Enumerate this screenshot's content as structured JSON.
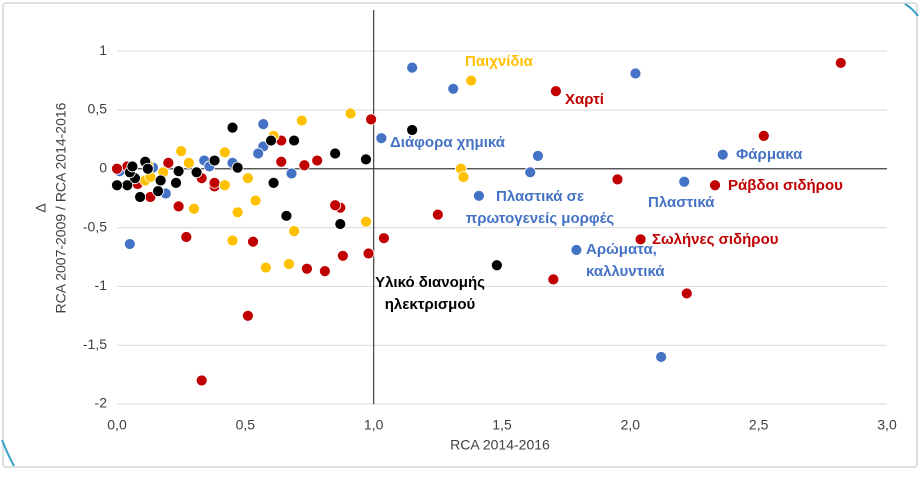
{
  "chart_data": {
    "type": "scatter",
    "x_label": "RCA 2014-2016",
    "y_label": [
      "Δ",
      "RCA 2007-2009 / RCA 2014-2016"
    ],
    "xlim": [
      0,
      3
    ],
    "ylim": [
      -2,
      1.35
    ],
    "xticks": [
      {
        "value": 0,
        "label": "0,0"
      },
      {
        "value": 0.5,
        "label": "0,5"
      },
      {
        "value": 1,
        "label": "1,0"
      },
      {
        "value": 1.5,
        "label": "1,5"
      },
      {
        "value": 2,
        "label": "2,0"
      },
      {
        "value": 2.5,
        "label": "2,5"
      },
      {
        "value": 3,
        "label": "3,0"
      }
    ],
    "yticks": [
      {
        "value": -2,
        "label": "-2"
      },
      {
        "value": -1.5,
        "label": "-1,5"
      },
      -1,
      {
        "value": -0.5,
        "label": "-0,5"
      },
      0,
      {
        "value": 0.5,
        "label": "0,5"
      },
      1
    ],
    "grid": true,
    "axis_cross": {
      "x": 1,
      "y": 0
    },
    "series": [
      {
        "color": "#4472c4",
        "x": [
          1.15,
          1.31,
          2.02,
          1.03,
          1.64,
          2.36,
          2.21,
          1.41,
          1.61,
          1.79,
          2.12,
          0.05,
          0.57,
          0.57,
          0.55,
          0.68,
          0.45,
          0.34,
          0.36,
          0.19,
          0.01,
          0.14
        ],
        "values": [
          0.86,
          0.68,
          0.81,
          0.26,
          0.11,
          0.12,
          -0.11,
          -0.23,
          -0.03,
          -0.69,
          -1.6,
          -0.64,
          0.38,
          0.19,
          0.13,
          -0.04,
          0.05,
          0.07,
          0.02,
          -0.21,
          -0.02,
          0.01
        ]
      },
      {
        "color": "#c00000",
        "x": [
          2.82,
          1.71,
          2.52,
          2.33,
          1.95,
          2.04,
          2.22,
          1.7,
          1.25,
          1.04,
          0.99,
          0.98,
          0.88,
          0.87,
          0.85,
          0.81,
          0.74,
          0.73,
          0.78,
          0.64,
          0.64,
          0.53,
          0.51,
          0.33,
          0.38,
          0.38,
          0.27,
          0.24,
          0.33,
          0.2,
          0.13,
          0.04,
          0.0,
          0.08
        ],
        "values": [
          0.9,
          0.66,
          0.28,
          -0.14,
          -0.09,
          -0.6,
          -1.06,
          -0.94,
          -0.39,
          -0.59,
          0.42,
          -0.72,
          -0.74,
          -0.33,
          -0.31,
          -0.87,
          -0.85,
          0.03,
          0.07,
          0.24,
          0.06,
          -0.62,
          -1.25,
          -1.8,
          -0.15,
          -0.12,
          -0.58,
          -0.32,
          -0.08,
          0.05,
          -0.24,
          0.02,
          0.0,
          -0.13
        ]
      },
      {
        "color": "#ffc000",
        "x": [
          1.38,
          0.91,
          0.72,
          0.61,
          1.34,
          1.35,
          0.97,
          0.69,
          0.67,
          0.58,
          0.45,
          0.47,
          0.54,
          0.42,
          0.42,
          0.51,
          0.3,
          0.25,
          0.28,
          0.11,
          0.13,
          0.12,
          0.18
        ],
        "values": [
          0.75,
          0.47,
          0.41,
          0.28,
          0.0,
          -0.07,
          -0.45,
          -0.53,
          -0.81,
          -0.84,
          -0.61,
          -0.37,
          -0.27,
          -0.14,
          0.14,
          -0.08,
          -0.34,
          0.15,
          0.05,
          -0.1,
          -0.07,
          0.03,
          -0.03
        ]
      },
      {
        "color": "#000000",
        "x": [
          1.15,
          1.48,
          0.97,
          0.85,
          0.87,
          0.66,
          0.69,
          0.45,
          0.47,
          0.61,
          0.6,
          0.38,
          0.31,
          0.24,
          0.23,
          0.17,
          0.16,
          0.09,
          0.07,
          0.05,
          0.04,
          0.0,
          0.11,
          0.06,
          0.12
        ],
        "values": [
          0.33,
          -0.82,
          0.08,
          0.13,
          -0.47,
          -0.4,
          0.24,
          0.35,
          0.01,
          -0.12,
          0.24,
          0.07,
          -0.03,
          -0.02,
          -0.12,
          -0.1,
          -0.19,
          -0.24,
          -0.08,
          -0.03,
          -0.14,
          -0.14,
          0.06,
          0.02,
          0.0
        ]
      }
    ],
    "annotations": [
      {
        "lines": [
          "Παιχνίδια"
        ],
        "color": "#ffc000"
      },
      {
        "lines": [
          "Χαρτί"
        ],
        "color": "#c00000"
      },
      {
        "lines": [
          "Διάφορα χημικά"
        ],
        "color": "#4472c4"
      },
      {
        "lines": [
          "Φάρμακα"
        ],
        "color": "#4472c4"
      },
      {
        "lines": [
          "Ράβδοι σιδήρου"
        ],
        "color": "#c00000"
      },
      {
        "lines": [
          "Πλαστικά"
        ],
        "color": "#4472c4"
      },
      {
        "lines": [
          "Πλαστικά σε",
          "πρωτογενείς μορφές"
        ],
        "color": "#4472c4"
      },
      {
        "lines": [
          "Σωλήνες σιδήρου"
        ],
        "color": "#c00000"
      },
      {
        "lines": [
          "Αρώματα,",
          "καλλυντικά"
        ],
        "color": "#4472c4"
      },
      {
        "lines": [
          "Υλικό διανομής",
          "ηλεκτρισμού"
        ],
        "color": "#000000"
      }
    ]
  }
}
